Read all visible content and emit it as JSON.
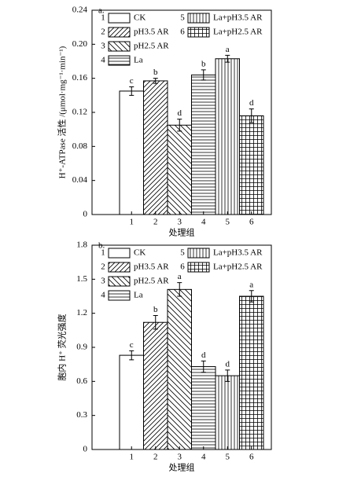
{
  "chart_data": [
    {
      "type": "bar",
      "panel_label": "a.",
      "y_label": "H⁺-ATPase 活性 /(μmol·mg⁻¹·min⁻¹)",
      "x_label": "处理组",
      "categories": [
        "1",
        "2",
        "3",
        "4",
        "5",
        "6"
      ],
      "groups": [
        "CK",
        "pH3.5 AR",
        "pH2.5 AR",
        "La",
        "La+pH3.5 AR",
        "La+pH2.5 AR"
      ],
      "patterns": [
        "none",
        "diagonal-up",
        "diagonal-down",
        "horizontal",
        "vertical",
        "grid"
      ],
      "values": [
        0.145,
        0.157,
        0.105,
        0.164,
        0.183,
        0.116
      ],
      "errors": [
        0.005,
        0.003,
        0.007,
        0.006,
        0.004,
        0.008
      ],
      "significance": [
        "c",
        "b",
        "d",
        "b",
        "a",
        "d"
      ],
      "ylim": [
        0,
        0.24
      ],
      "yticks": [
        0,
        0.04,
        0.08,
        0.12,
        0.16,
        {
          "value": 0.2,
          "label": "0.20"
        },
        0.24
      ]
    },
    {
      "type": "bar",
      "panel_label": "b.",
      "y_label": "胞内 H⁺ 荧光强度",
      "x_label": "处理组",
      "categories": [
        "1",
        "2",
        "3",
        "4",
        "5",
        "6"
      ],
      "groups": [
        "CK",
        "pH3.5 AR",
        "pH2.5 AR",
        "La",
        "La+pH3.5 AR",
        "La+pH2.5 AR"
      ],
      "patterns": [
        "none",
        "diagonal-up",
        "diagonal-down",
        "horizontal",
        "vertical",
        "grid"
      ],
      "values": [
        0.83,
        1.12,
        1.41,
        0.73,
        0.65,
        1.35
      ],
      "errors": [
        0.04,
        0.06,
        0.06,
        0.05,
        0.05,
        0.05
      ],
      "significance": [
        "c",
        "b",
        "a",
        "d",
        "d",
        "a"
      ],
      "ylim": [
        0,
        1.8
      ],
      "yticks": [
        0,
        0.3,
        0.6,
        0.9,
        1.2,
        1.5,
        1.8
      ]
    }
  ]
}
